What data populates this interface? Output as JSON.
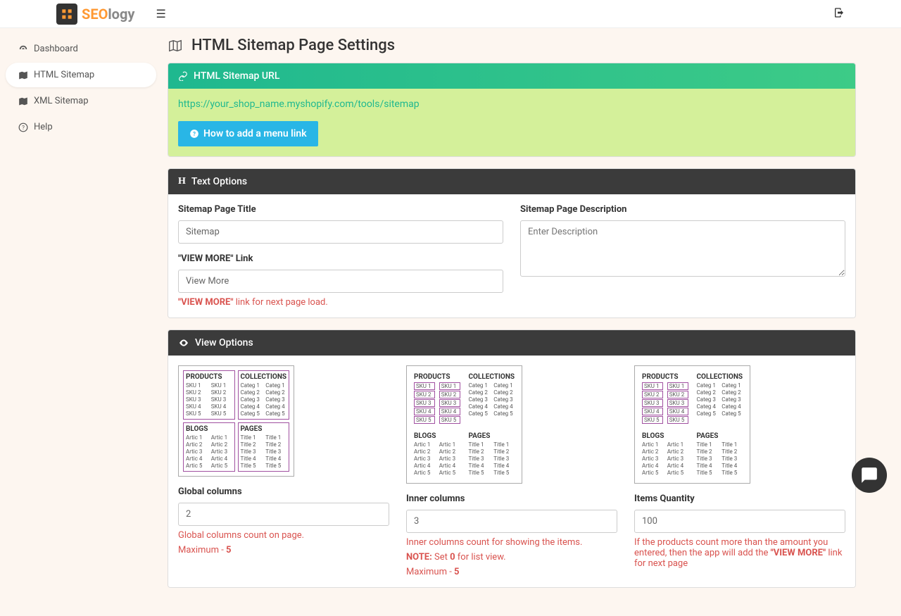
{
  "brand": {
    "name1": "SEO",
    "name2": "logy"
  },
  "sidebar": {
    "items": [
      {
        "label": "Dashboard",
        "icon": "dashboard"
      },
      {
        "label": "HTML Sitemap",
        "icon": "map",
        "active": true
      },
      {
        "label": "XML Sitemap",
        "icon": "map"
      },
      {
        "label": "Help",
        "icon": "help"
      }
    ]
  },
  "page": {
    "title": "HTML Sitemap Page Settings"
  },
  "url_panel": {
    "header": "HTML Sitemap URL",
    "url": "https://your_shop_name.myshopify.com/tools/sitemap",
    "button": "How to add a menu link"
  },
  "text_options": {
    "header": "Text Options",
    "title_label": "Sitemap Page Title",
    "title_value": "Sitemap",
    "desc_label": "Sitemap Page Description",
    "desc_placeholder": "Enter Description",
    "viewmore_label": "\"VIEW MORE\" Link",
    "viewmore_value": "View More",
    "viewmore_help_bold": "\"VIEW MORE\"",
    "viewmore_help_rest": " link for next page load."
  },
  "view_options": {
    "header": "View Options",
    "global": {
      "label": "Global columns",
      "value": "2",
      "help1": "Global columns count on page.",
      "help2_a": "Maximum - ",
      "help2_b": "5"
    },
    "inner": {
      "label": "Inner columns",
      "value": "3",
      "help1": "Inner columns count for showing the items.",
      "note_label": "NOTE:",
      "note_a": " Set ",
      "note_b": "0",
      "note_c": " for list view.",
      "help2_a": "Maximum - ",
      "help2_b": "5"
    },
    "items": {
      "label": "Items Quantity",
      "value": "100",
      "help1": "If the products count more than the amount you entered, then the app will add the ",
      "help1_bold": "\"VIEW MORE\"",
      "help1_rest": " link for next page"
    },
    "preview": {
      "products": "PRODUCTS",
      "collections": "COLLECTIONS",
      "blogs": "BLOGS",
      "pages": "PAGES",
      "sku": [
        "SKU 1",
        "SKU 2",
        "SKU 3",
        "SKU 4",
        "SKU 5"
      ],
      "categ": [
        "Categ 1",
        "Categ 2",
        "Categ 3",
        "Categ 4",
        "Categ 5"
      ],
      "artic": [
        "Artic 1",
        "Artic 2",
        "Artic 3",
        "Artic 4",
        "Artic 5"
      ],
      "title": [
        "Title 1",
        "Title 2",
        "Title 3",
        "Title 4",
        "Title 5"
      ]
    }
  }
}
